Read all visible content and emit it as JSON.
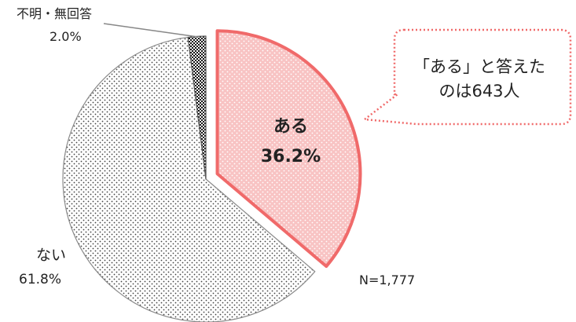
{
  "chart_data": {
    "type": "pie",
    "categories": [
      "ある",
      "ない",
      "不明・無回答"
    ],
    "values": [
      36.2,
      61.8,
      2.0
    ],
    "value_labels": [
      "36.2%",
      "61.8%",
      "2.0%"
    ],
    "highlight": "ある",
    "exploded": "ある",
    "colors": {
      "highlight_fill": "#f8c3c3",
      "highlight_edge": "#f06a6a",
      "dot": "#444444",
      "edge": "#8a8a8a"
    },
    "note": "N=1,777",
    "callout": [
      "「ある」と答えた",
      "のは643人"
    ]
  }
}
